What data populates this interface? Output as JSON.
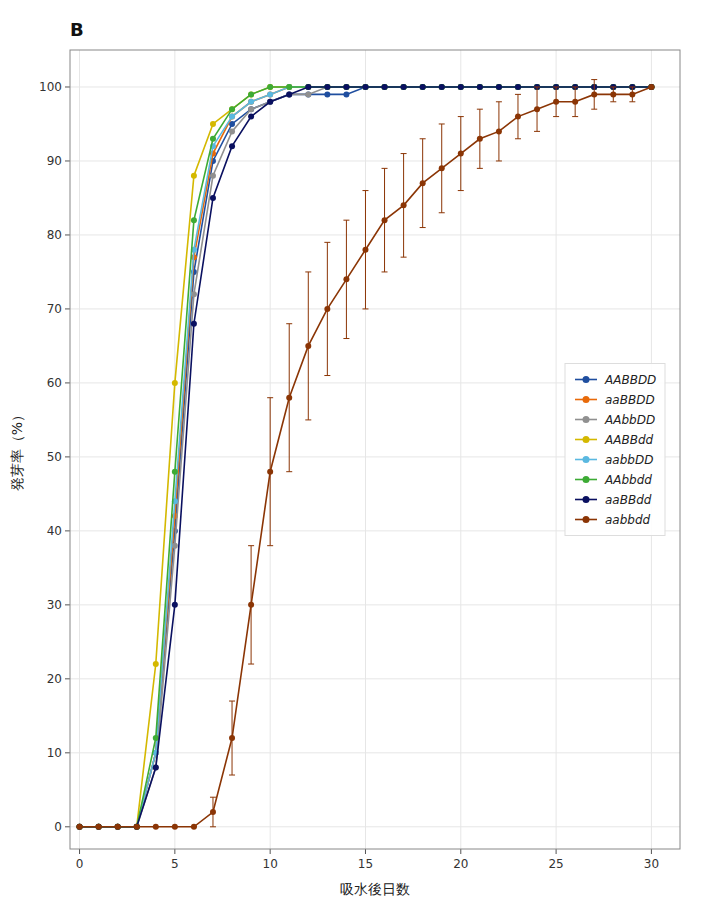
{
  "chart_data": {
    "type": "line",
    "x": [
      0,
      1,
      2,
      3,
      4,
      5,
      6,
      7,
      8,
      9,
      10,
      11,
      12,
      13,
      14,
      15,
      16,
      17,
      18,
      19,
      20,
      21,
      22,
      23,
      24,
      25,
      26,
      27,
      28,
      29,
      30
    ],
    "series": [
      {
        "name": "AABBDD",
        "color": "#1f4e9f",
        "marker": "circle",
        "values": [
          0,
          0,
          0,
          0,
          10,
          40,
          75,
          90,
          95,
          97,
          98,
          99,
          99,
          99,
          99,
          100,
          100,
          100,
          100,
          100,
          100,
          100,
          100,
          100,
          100,
          100,
          100,
          100,
          100,
          100,
          100
        ]
      },
      {
        "name": "aaBBDD",
        "color": "#e86a0a",
        "marker": "circle",
        "values": [
          0,
          0,
          0,
          0,
          10,
          42,
          77,
          91,
          96,
          98,
          99,
          100,
          100,
          100,
          100,
          100,
          100,
          100,
          100,
          100,
          100,
          100,
          100,
          100,
          100,
          100,
          100,
          100,
          100,
          100,
          100
        ]
      },
      {
        "name": "AAbbDD",
        "color": "#909090",
        "marker": "circle",
        "values": [
          0,
          0,
          0,
          0,
          8,
          38,
          72,
          88,
          94,
          97,
          98,
          99,
          99,
          100,
          100,
          100,
          100,
          100,
          100,
          100,
          100,
          100,
          100,
          100,
          100,
          100,
          100,
          100,
          100,
          100,
          100
        ]
      },
      {
        "name": "AABBdd",
        "color": "#d4b800",
        "marker": "circle",
        "values": [
          0,
          0,
          0,
          0,
          22,
          60,
          88,
          95,
          97,
          99,
          100,
          100,
          100,
          100,
          100,
          100,
          100,
          100,
          100,
          100,
          100,
          100,
          100,
          100,
          100,
          100,
          100,
          100,
          100,
          100,
          100
        ]
      },
      {
        "name": "aabbDD",
        "color": "#5ab8e0",
        "marker": "circle",
        "values": [
          0,
          0,
          0,
          0,
          10,
          44,
          78,
          92,
          96,
          98,
          99,
          100,
          100,
          100,
          100,
          100,
          100,
          100,
          100,
          100,
          100,
          100,
          100,
          100,
          100,
          100,
          100,
          100,
          100,
          100,
          100
        ]
      },
      {
        "name": "AAbbdd",
        "color": "#3dab35",
        "marker": "circle",
        "values": [
          0,
          0,
          0,
          0,
          12,
          48,
          82,
          93,
          97,
          99,
          100,
          100,
          100,
          100,
          100,
          100,
          100,
          100,
          100,
          100,
          100,
          100,
          100,
          100,
          100,
          100,
          100,
          100,
          100,
          100,
          100
        ]
      },
      {
        "name": "aaBBdd",
        "color": "#0a1060",
        "marker": "circle",
        "values": [
          0,
          0,
          0,
          0,
          8,
          30,
          68,
          85,
          92,
          96,
          98,
          99,
          100,
          100,
          100,
          100,
          100,
          100,
          100,
          100,
          100,
          100,
          100,
          100,
          100,
          100,
          100,
          100,
          100,
          100,
          100
        ]
      },
      {
        "name": "aabbdd",
        "color": "#8b3505",
        "marker": "circle",
        "values": [
          0,
          0,
          0,
          0,
          0,
          0,
          0,
          2,
          12,
          30,
          48,
          58,
          65,
          70,
          74,
          78,
          82,
          84,
          87,
          89,
          91,
          93,
          94,
          96,
          97,
          98,
          98,
          99,
          99,
          99,
          100
        ],
        "errors": [
          0,
          0,
          0,
          0,
          0,
          0,
          0,
          2,
          5,
          8,
          10,
          10,
          10,
          9,
          8,
          8,
          7,
          7,
          6,
          6,
          5,
          4,
          4,
          3,
          3,
          2,
          2,
          2,
          1,
          1,
          0
        ]
      }
    ],
    "xlabel": "吸水後日数",
    "ylabel": "発芽率（%）",
    "xlim": [
      -0.5,
      31.5
    ],
    "ylim": [
      -3,
      105
    ],
    "xticks": [
      0,
      5,
      10,
      15,
      20,
      25,
      30
    ],
    "yticks": [
      0,
      10,
      20,
      30,
      40,
      50,
      60,
      70,
      80,
      90,
      100
    ],
    "grid": true,
    "legend": "right",
    "annotations": [
      "B"
    ]
  }
}
